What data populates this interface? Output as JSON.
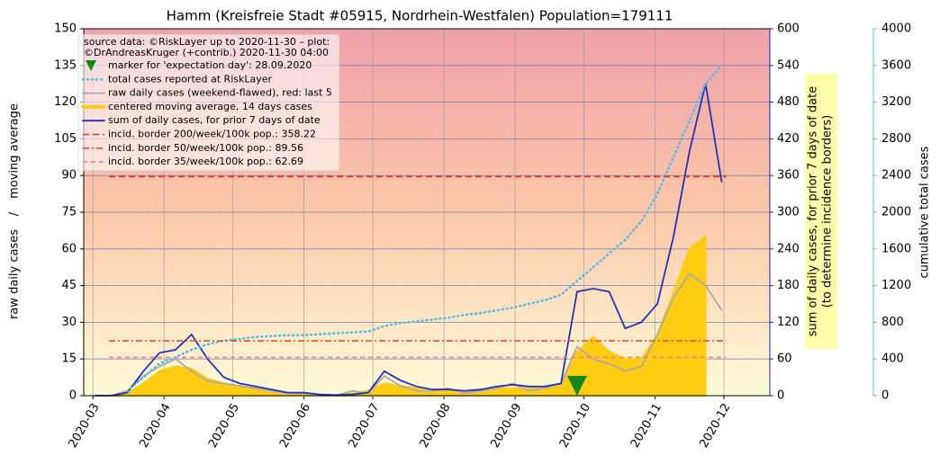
{
  "chart_data": {
    "type": "line",
    "title": "Hamm (Kreisfreie Stadt #05915, Nordrhein-Westfalen) Population=179111",
    "source": [
      "source data: ©RiskLayer up to 2020-11-30 – plot:",
      "©DrAndreasKruger (+contrib.) 2020-11-30 04:00"
    ],
    "ylabel": [
      "raw daily cases",
      "/",
      "moving average"
    ],
    "y2label": [
      "sum of daily cases, for prior 7 days of date",
      "(to determine incidence borders)"
    ],
    "y3label": "cumulative total cases",
    "xlim": [
      "2020-02-26",
      "2020-12-21"
    ],
    "xticks": [
      {
        "value": "2020-03-01",
        "label": "2020-03"
      },
      {
        "value": "2020-04-01",
        "label": "2020-04"
      },
      {
        "value": "2020-05-01",
        "label": "2020-05"
      },
      {
        "value": "2020-06-01",
        "label": "2020-06"
      },
      {
        "value": "2020-07-01",
        "label": "2020-07"
      },
      {
        "value": "2020-08-01",
        "label": "2020-08"
      },
      {
        "value": "2020-09-01",
        "label": "2020-09"
      },
      {
        "value": "2020-10-01",
        "label": "2020-10"
      },
      {
        "value": "2020-11-01",
        "label": "2020-11"
      },
      {
        "value": "2020-12-01",
        "label": "2020-12"
      }
    ],
    "ylim": [
      0,
      150
    ],
    "yticks": [
      0,
      15,
      30,
      45,
      60,
      75,
      90,
      105,
      120,
      135,
      150
    ],
    "y2lim": [
      0,
      600
    ],
    "y2ticks": [
      0,
      60,
      120,
      180,
      240,
      300,
      360,
      420,
      480,
      540,
      600
    ],
    "y3lim": [
      0,
      4000
    ],
    "y3ticks": [
      0,
      400,
      800,
      1200,
      1600,
      2000,
      2400,
      2800,
      3200,
      3600,
      4000
    ],
    "grid": true,
    "x": [
      "2020-03-02",
      "2020-03-09",
      "2020-03-16",
      "2020-03-23",
      "2020-03-30",
      "2020-04-06",
      "2020-04-13",
      "2020-04-20",
      "2020-04-27",
      "2020-05-04",
      "2020-05-11",
      "2020-05-18",
      "2020-05-25",
      "2020-06-01",
      "2020-06-08",
      "2020-06-15",
      "2020-06-22",
      "2020-06-29",
      "2020-07-06",
      "2020-07-13",
      "2020-07-20",
      "2020-07-27",
      "2020-08-03",
      "2020-08-10",
      "2020-08-17",
      "2020-08-24",
      "2020-08-31",
      "2020-09-07",
      "2020-09-14",
      "2020-09-21",
      "2020-09-28",
      "2020-10-05",
      "2020-10-12",
      "2020-10-19",
      "2020-10-26",
      "2020-11-02",
      "2020-11-09",
      "2020-11-16",
      "2020-11-23",
      "2020-11-30"
    ],
    "marker": {
      "name": "marker for 'expectation day': 28.09.2020",
      "x": "2020-09-28",
      "value": 0,
      "color": "#118811"
    },
    "series": [
      {
        "name": "total cases reported at RiskLayer",
        "color": "#55bbee",
        "axis": "y3",
        "style": "dotted",
        "values": [
          null,
          null,
          50,
          200,
          350,
          420,
          500,
          560,
          600,
          620,
          640,
          650,
          660,
          660,
          670,
          680,
          690,
          700,
          760,
          790,
          810,
          830,
          850,
          880,
          900,
          930,
          960,
          1000,
          1040,
          1100,
          1250,
          1400,
          1550,
          1700,
          1900,
          2200,
          2600,
          3000,
          3400,
          3600
        ]
      },
      {
        "name": "raw daily cases (weekend-flawed), red: last 5",
        "color": "#aaaaaa",
        "axis": "y",
        "style": "line",
        "values": [
          0,
          0,
          2,
          8,
          12,
          15,
          10,
          6,
          5,
          4,
          3,
          2,
          1,
          1,
          0,
          0,
          2,
          1,
          8,
          4,
          2,
          2,
          3,
          1,
          2,
          3,
          5,
          2,
          3,
          5,
          20,
          15,
          13,
          10,
          12,
          25,
          40,
          50,
          45,
          35
        ]
      },
      {
        "name": "centered moving average, 14 days cases",
        "color": "#ffcc11",
        "axis": "y",
        "style": "area",
        "values": [
          0,
          0,
          1,
          5,
          10,
          12,
          11,
          7,
          5,
          4,
          3,
          2,
          1,
          1,
          0,
          0,
          1,
          2,
          5,
          4,
          3,
          2,
          2,
          2,
          2,
          3,
          3,
          3,
          3,
          5,
          18,
          24,
          18,
          15,
          15,
          25,
          42,
          60,
          65,
          null
        ]
      },
      {
        "name": "sum of daily cases, for prior 7 days of date",
        "color": "#2233bb",
        "axis": "y2",
        "style": "line",
        "values": [
          0,
          0,
          5,
          40,
          70,
          75,
          100,
          60,
          30,
          20,
          15,
          10,
          5,
          5,
          2,
          1,
          2,
          5,
          40,
          25,
          15,
          10,
          10,
          8,
          10,
          15,
          18,
          15,
          15,
          20,
          170,
          175,
          170,
          110,
          120,
          150,
          260,
          400,
          510,
          350
        ]
      }
    ],
    "hlines": [
      {
        "name": "incid. border 200/week/100k pop.: 358.22",
        "value": 358.22,
        "color": "#dd3322",
        "dash": "7,4",
        "from": "2020-03-08",
        "to": "2020-12-02"
      },
      {
        "name": "incid. border 50/week/100k pop.: 89.56",
        "value": 89.56,
        "color": "#dd5533",
        "dash": "7,3,2,3",
        "from": "2020-03-08",
        "to": "2020-12-02"
      },
      {
        "name": "incid. border 35/week/100k pop.: 62.69",
        "value": 62.69,
        "color": "#ff7788",
        "dash": "5,4",
        "from": "2020-03-08",
        "to": "2020-12-02"
      }
    ]
  }
}
